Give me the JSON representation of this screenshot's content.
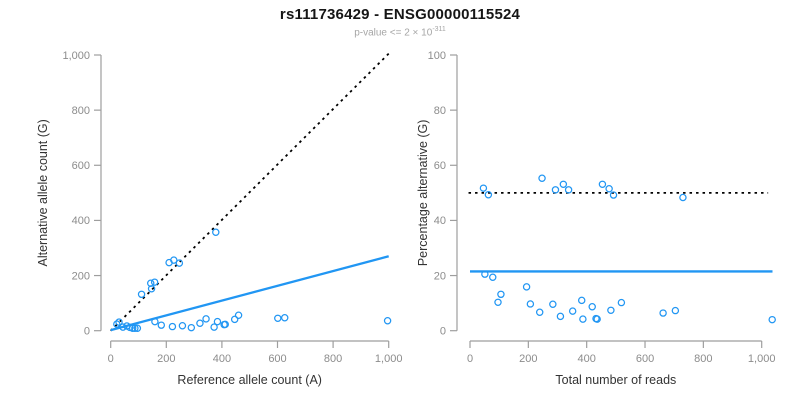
{
  "header": {
    "title": "rs111736429 - ENSG00000115524",
    "subtitle_base": "p-value <= 2 × 10",
    "subtitle_exponent": "-311"
  },
  "colors": {
    "accent_blue": "#2196f3",
    "reference_black": "#000000",
    "axis_line": "#9e9e9e",
    "tick_label": "#8c8c8c",
    "axis_title": "#333333",
    "title_text": "#161616",
    "subtitle_text": "#a6a6a6"
  },
  "chart_data": [
    {
      "id": "allele-count-scatter",
      "type": "scatter",
      "xlabel": "Reference allele count (A)",
      "ylabel": "Alternative allele count (G)",
      "xlim": [
        0,
        1000
      ],
      "ylim": [
        0,
        1000
      ],
      "xticks": [
        0,
        200,
        400,
        600,
        800,
        1000
      ],
      "yticks": [
        0,
        200,
        400,
        600,
        800,
        1000
      ],
      "xtick_labels": [
        "0",
        "200",
        "400",
        "600",
        "800",
        "1,000"
      ],
      "ytick_labels": [
        "0",
        "200",
        "400",
        "600",
        "800",
        "1,000"
      ],
      "grid": false,
      "legend": null,
      "points": [
        [
          22,
          24
        ],
        [
          30,
          31
        ],
        [
          44,
          13
        ],
        [
          58,
          17
        ],
        [
          69,
          12
        ],
        [
          79,
          9
        ],
        [
          87,
          9
        ],
        [
          96,
          9
        ],
        [
          111,
          132
        ],
        [
          147,
          152
        ],
        [
          144,
          172
        ],
        [
          158,
          176
        ],
        [
          210,
          247
        ],
        [
          227,
          256
        ],
        [
          247,
          245
        ],
        [
          378,
          357
        ],
        [
          159,
          33
        ],
        [
          182,
          20
        ],
        [
          222,
          15
        ],
        [
          258,
          18
        ],
        [
          290,
          11
        ],
        [
          321,
          27
        ],
        [
          343,
          43
        ],
        [
          372,
          13
        ],
        [
          384,
          33
        ],
        [
          408,
          22
        ],
        [
          412,
          23
        ],
        [
          446,
          41
        ],
        [
          460,
          56
        ],
        [
          601,
          45
        ],
        [
          626,
          47
        ],
        [
          996,
          36
        ]
      ],
      "ref_lines": [
        {
          "name": "identity-line",
          "style": "dotted",
          "color": "#000000",
          "x1": 0,
          "y1": 0,
          "x2": 1000,
          "y2": 1005
        },
        {
          "name": "allelic-ratio-line",
          "style": "solid",
          "color": "#2196f3",
          "x1": 0,
          "y1": 2,
          "x2": 1000,
          "y2": 270
        }
      ]
    },
    {
      "id": "percentage-scatter",
      "type": "scatter",
      "xlabel": "Total number of reads",
      "ylabel": "Percentage alternative (G)",
      "xlim": [
        0,
        1000
      ],
      "ylim": [
        0,
        100
      ],
      "xticks": [
        0,
        200,
        400,
        600,
        800,
        1000
      ],
      "yticks": [
        0,
        20,
        40,
        60,
        80,
        100
      ],
      "xtick_labels": [
        "0",
        "200",
        "400",
        "600",
        "800",
        "1,000"
      ],
      "ytick_labels": [
        "0",
        "20",
        "40",
        "60",
        "80",
        "100"
      ],
      "grid": false,
      "legend": null,
      "points": [
        [
          46,
          51.7
        ],
        [
          63,
          49.3
        ],
        [
          247,
          55.3
        ],
        [
          293,
          51.1
        ],
        [
          320,
          53.1
        ],
        [
          338,
          51.1
        ],
        [
          454,
          53.1
        ],
        [
          477,
          51.5
        ],
        [
          492,
          49.2
        ],
        [
          730,
          48.3
        ],
        [
          51,
          20.5
        ],
        [
          78,
          19.4
        ],
        [
          96,
          10.3
        ],
        [
          106,
          13.2
        ],
        [
          194,
          15.9
        ],
        [
          207,
          9.7
        ],
        [
          239,
          6.7
        ],
        [
          284,
          9.6
        ],
        [
          310,
          5.2
        ],
        [
          352,
          7.1
        ],
        [
          383,
          11
        ],
        [
          387,
          4.2
        ],
        [
          419,
          8.7
        ],
        [
          432,
          4.4
        ],
        [
          436,
          4.2
        ],
        [
          483,
          7.4
        ],
        [
          519,
          10.2
        ],
        [
          662,
          6.4
        ],
        [
          704,
          7.3
        ],
        [
          1036,
          4
        ]
      ],
      "ref_lines": [
        {
          "name": "fifty-percent-line",
          "style": "dotted",
          "color": "#000000",
          "x1": -5,
          "y1": 50,
          "x2": 1022,
          "y2": 50
        },
        {
          "name": "mean-percentage-line",
          "style": "solid",
          "color": "#2196f3",
          "x1": 0,
          "y1": 21.5,
          "x2": 1037,
          "y2": 21.5
        }
      ]
    }
  ]
}
